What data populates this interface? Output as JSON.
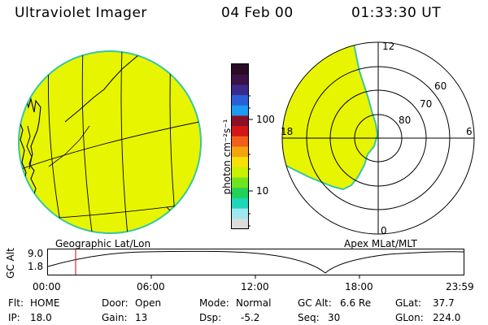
{
  "header": {
    "title": "Ultraviolet Imager",
    "date": "04 Feb 00",
    "time": "01:33:30 UT"
  },
  "colorbar": {
    "unit_label": "photon cm⁻²s⁻¹",
    "ticks": [
      "100",
      "10"
    ],
    "colors": [
      "#2a0a25",
      "#3b1246",
      "#3a2a8a",
      "#2b5fd8",
      "#1c9bf0",
      "#8a1026",
      "#d41616",
      "#f0601a",
      "#f4a40c",
      "#f6e10b",
      "#c9f000",
      "#6fe31e",
      "#22d15a",
      "#1fd6b8",
      "#9fe8f0",
      "#dcdcdc"
    ]
  },
  "geographic_panel": {
    "label": "Geographic Lat/Lon",
    "fill_color": "#e8f500"
  },
  "polar_panel": {
    "label": "Apex MLat/MLT",
    "mlt_labels": {
      "top": "12",
      "left": "18",
      "right": "6",
      "bottom": "0"
    },
    "lat_labels": [
      "60",
      "70",
      "80"
    ],
    "fill_color": "#e8f500"
  },
  "altitude_plot": {
    "ylabel": "GC Alt",
    "yticks": [
      "9.0",
      "1.8"
    ],
    "xticks": [
      "00:00",
      "06:00",
      "12:00",
      "18:00",
      "23:59"
    ],
    "current_time_color": "#d40000"
  },
  "info": {
    "flt_label": "Flt:",
    "flt_value": "HOME",
    "ip_label": "IP:",
    "ip_value": "18.0",
    "door_label": "Door:",
    "door_value": "Open",
    "gain_label": "Gain:",
    "gain_value": "13",
    "mode_label": "Mode:",
    "mode_value": "Normal",
    "dsp_label": "Dsp:",
    "dsp_value": "-5.2",
    "gcalt_label": "GC Alt:",
    "gcalt_value": "6.6 Re",
    "seq_label": "Seq:",
    "seq_value": "30",
    "glat_label": "GLat:",
    "glat_value": "37.7",
    "glon_label": "GLon:",
    "glon_value": "224.0"
  }
}
